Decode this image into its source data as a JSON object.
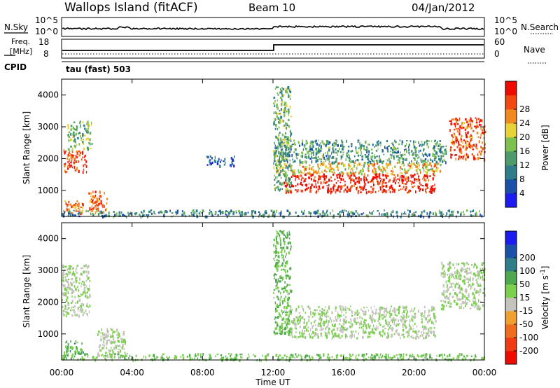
{
  "header": {
    "station": "Wallops Island (fitACF)",
    "beam": "Beam 10",
    "date": "04/Jan/2012"
  },
  "strip_labels": {
    "nsky": "N.Sky",
    "nsearch": "N.Search",
    "freq_line1": "Freq.",
    "freq_line2": "[MHz]",
    "nave": "Nave",
    "cpid": "CPID",
    "cpid_text": "tau (fast) 503",
    "noise_tick_top": "10^5",
    "noise_tick_bottom": "10^0",
    "freq_ticks": [
      "18",
      "8"
    ],
    "nave_ticks": [
      "60",
      "0"
    ]
  },
  "x_axis": {
    "label": "Time UT",
    "ticks": [
      "00:00",
      "04:00",
      "08:00",
      "12:00",
      "16:00",
      "20:00",
      "00:00"
    ],
    "hours": [
      0,
      4,
      8,
      12,
      16,
      20,
      24
    ]
  },
  "colors": {
    "power": [
      "#1c1cf0",
      "#1b4fa8",
      "#2f7d8a",
      "#4f9a6a",
      "#7cc04f",
      "#e8d23a",
      "#f08a1e",
      "#f04a12",
      "#ee0c00"
    ],
    "velocity": [
      "#1c1cf0",
      "#1b4fa8",
      "#2f7d8a",
      "#4fa84f",
      "#7cd04f",
      "#c4c4bc",
      "#f0a030",
      "#f06c1e",
      "#f03a12",
      "#ee0c00"
    ]
  },
  "chart_data": [
    {
      "type": "heatmap",
      "title": "",
      "xlabel": "Time UT",
      "ylabel": "Slant Range [km]",
      "xlim": [
        0,
        24
      ],
      "ylim": [
        180,
        4500
      ],
      "yticks": [
        1000,
        2000,
        3000,
        4000
      ],
      "colorbar": {
        "label": "Power [dB]",
        "min": 0,
        "max": 32,
        "tick_values": [
          4,
          8,
          12,
          16,
          20,
          24,
          28
        ],
        "tick_labels": [
          "4",
          "8",
          "12",
          "16",
          "20",
          "24",
          "28"
        ]
      },
      "regions": [
        {
          "time": [
            12.6,
            21.2
          ],
          "range": [
            950,
            1550
          ],
          "value": 30
        },
        {
          "time": [
            12.2,
            21.5
          ],
          "range": [
            1550,
            1900
          ],
          "value": 20
        },
        {
          "time": [
            12.0,
            21.8
          ],
          "range": [
            1900,
            2600
          ],
          "value": 12
        },
        {
          "time": [
            0.1,
            1.4
          ],
          "range": [
            1600,
            2300
          ],
          "value": 27
        },
        {
          "time": [
            0.3,
            1.7
          ],
          "range": [
            2300,
            3200
          ],
          "value": 15
        },
        {
          "time": [
            1.5,
            2.6
          ],
          "range": [
            300,
            1000
          ],
          "value": 26
        },
        {
          "time": [
            0.1,
            1.2
          ],
          "range": [
            300,
            700
          ],
          "value": 24
        },
        {
          "time": [
            22.0,
            24.0
          ],
          "range": [
            2000,
            3300
          ],
          "value": 26
        },
        {
          "time": [
            0.0,
            24.0
          ],
          "range": [
            200,
            400
          ],
          "value": 10
        },
        {
          "time": [
            12.0,
            13.0
          ],
          "range": [
            1000,
            4300
          ],
          "value": 14
        },
        {
          "time": [
            8.2,
            9.8
          ],
          "range": [
            1800,
            2100
          ],
          "value": 6
        }
      ]
    },
    {
      "type": "heatmap",
      "title": "",
      "xlabel": "Time UT",
      "ylabel": "Slant Range [km]",
      "xlim": [
        0,
        24
      ],
      "ylim": [
        180,
        4500
      ],
      "yticks": [
        1000,
        2000,
        3000,
        4000
      ],
      "colorbar": {
        "label": "Velocity [m s^-1]",
        "min": -250,
        "max": 250,
        "tick_values": [
          200,
          100,
          50,
          15,
          -15,
          -50,
          -100,
          -200
        ],
        "tick_labels": [
          "200",
          "100",
          "50",
          "15",
          "-15",
          "-50",
          "-100",
          "-200"
        ]
      },
      "regions": [
        {
          "time": [
            12.6,
            21.2
          ],
          "range": [
            900,
            1900
          ],
          "value": 0
        },
        {
          "time": [
            12.0,
            13.0
          ],
          "range": [
            1000,
            4300
          ],
          "value": 60
        },
        {
          "time": [
            21.5,
            24.0
          ],
          "range": [
            1800,
            3300
          ],
          "value": 0
        },
        {
          "time": [
            0.0,
            1.6
          ],
          "range": [
            1600,
            3200
          ],
          "value": 0
        },
        {
          "time": [
            0.1,
            1.2
          ],
          "range": [
            300,
            800
          ],
          "value": 70
        },
        {
          "time": [
            2.0,
            3.6
          ],
          "range": [
            300,
            1200
          ],
          "value": 0
        },
        {
          "time": [
            0.0,
            24.0
          ],
          "range": [
            200,
            400
          ],
          "value": 40
        }
      ]
    }
  ]
}
